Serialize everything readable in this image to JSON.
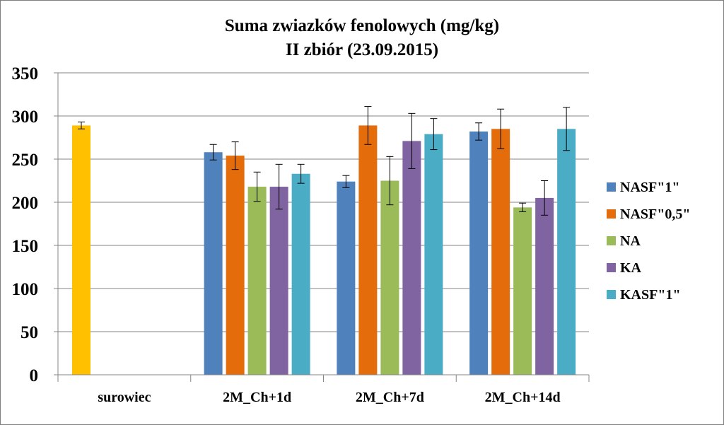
{
  "chart_data": {
    "type": "bar",
    "title": "Suma zwiazków fenolowych (mg/kg)",
    "subtitle": "II zbiór (23.09.2015)",
    "xlabel": "",
    "ylabel": "",
    "ylim": [
      0,
      350
    ],
    "yticks": [
      "0",
      "50",
      "100",
      "150",
      "200",
      "250",
      "300",
      "350"
    ],
    "categories": [
      "surowiec",
      "2M_Ch+1d",
      "2M_Ch+7d",
      "2M_Ch+14d"
    ],
    "grid": true,
    "legend_position": "right",
    "raw": {
      "name": "surowiec",
      "value": 289,
      "error": 4,
      "color": "#FFC000"
    },
    "series": [
      {
        "name": "NASF\"1\"",
        "color": "#4F81BD",
        "values": [
          null,
          258,
          224,
          282
        ],
        "errors": [
          null,
          9,
          7,
          10
        ]
      },
      {
        "name": "NASF\"0,5\"",
        "color": "#E46C0A",
        "values": [
          null,
          254,
          289,
          285
        ],
        "errors": [
          null,
          16,
          22,
          23
        ]
      },
      {
        "name": "NA",
        "color": "#9BBB59",
        "values": [
          null,
          218,
          225,
          194
        ],
        "errors": [
          null,
          17,
          28,
          5
        ]
      },
      {
        "name": "KA",
        "color": "#8064A2",
        "values": [
          null,
          218,
          271,
          205
        ],
        "errors": [
          null,
          26,
          32,
          20
        ]
      },
      {
        "name": "KASF\"1\"",
        "color": "#4BACC6",
        "values": [
          null,
          233,
          279,
          285
        ],
        "errors": [
          null,
          11,
          18,
          25
        ]
      }
    ]
  }
}
